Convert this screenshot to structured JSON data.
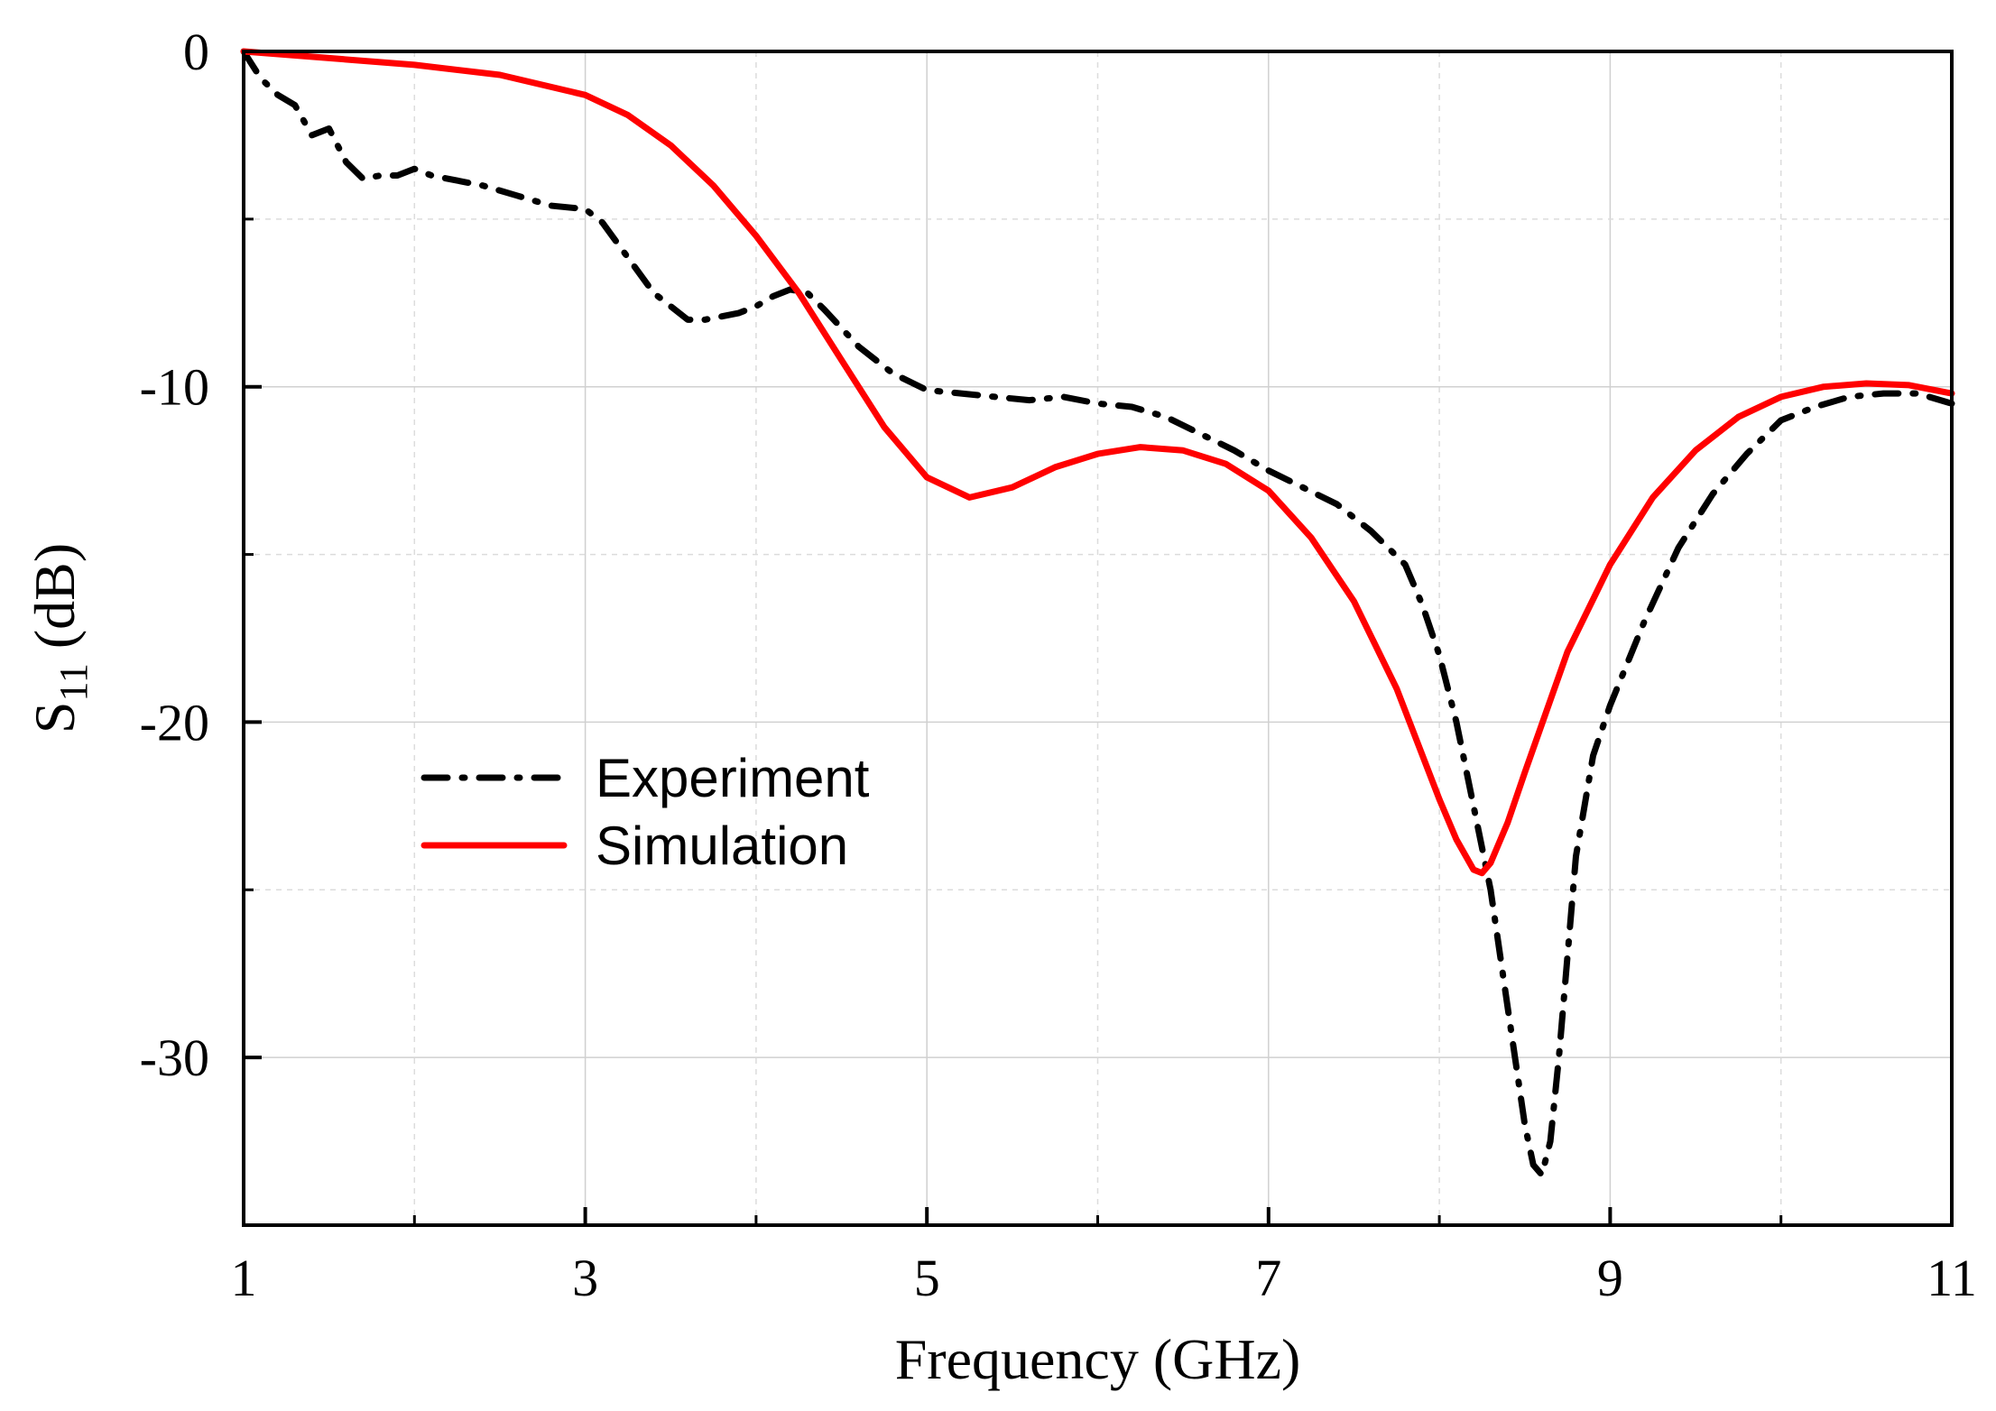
{
  "chart_data": {
    "type": "line",
    "title": "",
    "xlabel": "Frequency (GHz)",
    "ylabel_main": "S",
    "ylabel_sub": "11",
    "ylabel_unit": " (dB)",
    "xlim": [
      1,
      11
    ],
    "ylim": [
      -35,
      0
    ],
    "x_major_ticks": [
      1,
      3,
      5,
      7,
      9,
      11
    ],
    "x_minor_ticks": [
      2,
      4,
      6,
      8,
      10
    ],
    "y_major_ticks": [
      0,
      -10,
      -20,
      -30
    ],
    "y_minor_ticks": [
      -5,
      -15,
      -25
    ],
    "x_tick_labels": [
      "1",
      "3",
      "5",
      "7",
      "9",
      "11"
    ],
    "y_tick_labels": [
      "0",
      "-10",
      "-20",
      "-30"
    ],
    "grid": true,
    "legend_position": "middle-left",
    "series": [
      {
        "name": "Experiment",
        "color": "#000000",
        "style": "dash-dot",
        "x": [
          1.0,
          1.1,
          1.2,
          1.3,
          1.4,
          1.5,
          1.6,
          1.7,
          1.8,
          1.9,
          2.0,
          2.1,
          2.2,
          2.4,
          2.6,
          2.8,
          3.0,
          3.1,
          3.2,
          3.4,
          3.6,
          3.7,
          3.8,
          3.9,
          4.0,
          4.1,
          4.2,
          4.3,
          4.4,
          4.6,
          4.8,
          5.0,
          5.2,
          5.4,
          5.6,
          5.8,
          6.0,
          6.2,
          6.4,
          6.6,
          6.8,
          7.0,
          7.2,
          7.4,
          7.6,
          7.8,
          7.9,
          8.0,
          8.1,
          8.2,
          8.3,
          8.4,
          8.5,
          8.55,
          8.6,
          8.65,
          8.7,
          8.8,
          8.9,
          9.0,
          9.2,
          9.4,
          9.6,
          9.8,
          10.0,
          10.2,
          10.4,
          10.6,
          10.8,
          11.0
        ],
        "values": [
          0.0,
          -0.8,
          -1.3,
          -1.6,
          -2.5,
          -2.3,
          -3.3,
          -3.8,
          -3.7,
          -3.7,
          -3.5,
          -3.7,
          -3.8,
          -4.0,
          -4.3,
          -4.6,
          -4.7,
          -5.1,
          -5.8,
          -7.2,
          -8.0,
          -8.0,
          -7.9,
          -7.8,
          -7.6,
          -7.3,
          -7.1,
          -7.2,
          -7.7,
          -8.8,
          -9.6,
          -10.1,
          -10.2,
          -10.3,
          -10.4,
          -10.3,
          -10.5,
          -10.6,
          -10.9,
          -11.4,
          -11.9,
          -12.5,
          -13.0,
          -13.5,
          -14.3,
          -15.3,
          -16.5,
          -18.0,
          -20.0,
          -22.5,
          -25.0,
          -28.5,
          -32.0,
          -33.2,
          -33.5,
          -32.5,
          -30.0,
          -24.0,
          -21.0,
          -19.5,
          -17.0,
          -14.8,
          -13.2,
          -12.0,
          -11.0,
          -10.6,
          -10.3,
          -10.2,
          -10.2,
          -10.5
        ]
      },
      {
        "name": "Simulation",
        "color": "#ff0000",
        "style": "solid",
        "x": [
          1.0,
          1.5,
          2.0,
          2.5,
          3.0,
          3.25,
          3.5,
          3.75,
          4.0,
          4.25,
          4.5,
          4.75,
          5.0,
          5.25,
          5.5,
          5.75,
          6.0,
          6.25,
          6.5,
          6.75,
          7.0,
          7.25,
          7.5,
          7.75,
          8.0,
          8.1,
          8.2,
          8.25,
          8.3,
          8.4,
          8.5,
          8.75,
          9.0,
          9.25,
          9.5,
          9.75,
          10.0,
          10.25,
          10.5,
          10.75,
          11.0
        ],
        "values": [
          0.0,
          -0.2,
          -0.4,
          -0.7,
          -1.3,
          -1.9,
          -2.8,
          -4.0,
          -5.5,
          -7.2,
          -9.2,
          -11.2,
          -12.7,
          -13.3,
          -13.0,
          -12.4,
          -12.0,
          -11.8,
          -11.9,
          -12.3,
          -13.1,
          -14.5,
          -16.4,
          -19.0,
          -22.3,
          -23.5,
          -24.4,
          -24.5,
          -24.2,
          -23.0,
          -21.5,
          -17.9,
          -15.3,
          -13.3,
          -11.9,
          -10.9,
          -10.3,
          -10.0,
          -9.9,
          -9.95,
          -10.2
        ]
      }
    ]
  }
}
